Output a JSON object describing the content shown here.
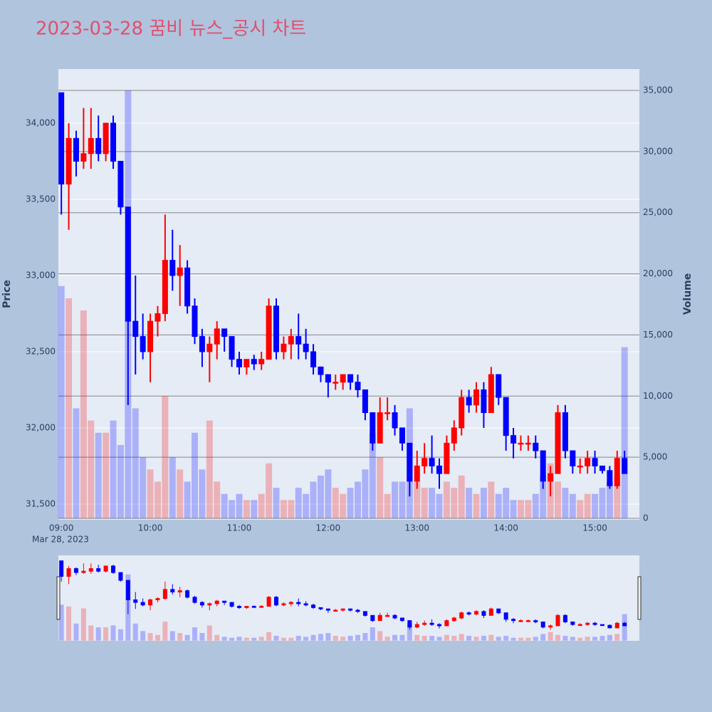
{
  "chart_data": {
    "type": "candlestick",
    "title": "2023-03-28 꿈비 뉴스_공시 차트",
    "y_label": "Price",
    "y2_label": "Volume",
    "x_date_label": "Mar 28, 2023",
    "up_color": "#ff0000",
    "down_color": "#0000ff",
    "x": [
      "2023-03-28 09:00",
      "2023-03-28 09:05",
      "2023-03-28 09:10",
      "2023-03-28 09:15",
      "2023-03-28 09:20",
      "2023-03-28 09:25",
      "2023-03-28 09:30",
      "2023-03-28 09:35",
      "2023-03-28 09:40",
      "2023-03-28 09:45",
      "2023-03-28 09:50",
      "2023-03-28 09:55",
      "2023-03-28 10:00",
      "2023-03-28 10:05",
      "2023-03-28 10:10",
      "2023-03-28 10:15",
      "2023-03-28 10:20",
      "2023-03-28 10:25",
      "2023-03-28 10:30",
      "2023-03-28 10:35",
      "2023-03-28 10:40",
      "2023-03-28 10:45",
      "2023-03-28 10:50",
      "2023-03-28 10:55",
      "2023-03-28 11:00",
      "2023-03-28 11:05",
      "2023-03-28 11:10",
      "2023-03-28 11:15",
      "2023-03-28 11:20",
      "2023-03-28 11:25",
      "2023-03-28 11:30",
      "2023-03-28 11:35",
      "2023-03-28 11:40",
      "2023-03-28 11:45",
      "2023-03-28 11:50",
      "2023-03-28 11:55",
      "2023-03-28 12:00",
      "2023-03-28 12:05",
      "2023-03-28 12:10",
      "2023-03-28 12:15",
      "2023-03-28 12:20",
      "2023-03-28 12:25",
      "2023-03-28 12:30",
      "2023-03-28 12:35",
      "2023-03-28 12:40",
      "2023-03-28 12:45",
      "2023-03-28 12:50",
      "2023-03-28 12:55",
      "2023-03-28 13:00",
      "2023-03-28 13:05",
      "2023-03-28 13:10",
      "2023-03-28 13:15",
      "2023-03-28 13:20",
      "2023-03-28 13:25",
      "2023-03-28 13:30",
      "2023-03-28 13:35",
      "2023-03-28 13:40",
      "2023-03-28 13:45",
      "2023-03-28 13:50",
      "2023-03-28 13:55",
      "2023-03-28 14:00",
      "2023-03-28 14:05",
      "2023-03-28 14:10",
      "2023-03-28 14:15",
      "2023-03-28 14:20",
      "2023-03-28 14:25",
      "2023-03-28 14:30",
      "2023-03-28 14:35",
      "2023-03-28 14:40",
      "2023-03-28 14:45",
      "2023-03-28 14:50",
      "2023-03-28 14:55",
      "2023-03-28 15:00",
      "2023-03-28 15:05",
      "2023-03-28 15:10",
      "2023-03-28 15:15",
      "2023-03-28 15:20"
    ],
    "open": [
      34200,
      33600,
      33900,
      33750,
      33800,
      33900,
      33800,
      34000,
      33750,
      33450,
      32700,
      32600,
      32500,
      32700,
      32750,
      33100,
      33000,
      33050,
      32800,
      32600,
      32500,
      32550,
      32650,
      32600,
      32450,
      32400,
      32450,
      32420,
      32450,
      32800,
      32500,
      32550,
      32600,
      32550,
      32500,
      32400,
      32350,
      32300,
      32300,
      32350,
      32300,
      32250,
      32100,
      31900,
      32100,
      32100,
      32000,
      31900,
      31650,
      31750,
      31800,
      31750,
      31700,
      31900,
      32000,
      32200,
      32150,
      32250,
      32100,
      32350,
      32200,
      31950,
      31900,
      31900,
      31900,
      31850,
      31650,
      31700,
      32100,
      31850,
      31750,
      31750,
      31800,
      31750,
      31720,
      31620,
      31800
    ],
    "high": [
      34200,
      34000,
      33950,
      34100,
      34100,
      34050,
      34000,
      34050,
      33750,
      33450,
      33000,
      32750,
      32750,
      32800,
      33400,
      33300,
      33200,
      33100,
      32850,
      32650,
      32600,
      32700,
      32650,
      32600,
      32500,
      32450,
      32480,
      32500,
      32850,
      32850,
      32600,
      32650,
      32750,
      32650,
      32550,
      32400,
      32350,
      32350,
      32350,
      32350,
      32350,
      32250,
      32100,
      32200,
      32200,
      32150,
      32000,
      31900,
      31850,
      31900,
      31950,
      31800,
      31950,
      32050,
      32250,
      32250,
      32300,
      32300,
      32400,
      32350,
      32200,
      32000,
      31950,
      31950,
      31950,
      31850,
      31750,
      32150,
      32150,
      31850,
      31800,
      31850,
      31850,
      31750,
      31750,
      31850,
      31850
    ],
    "low": [
      33400,
      33300,
      33650,
      33700,
      33700,
      33750,
      33750,
      33700,
      33400,
      32150,
      32350,
      32450,
      32300,
      32600,
      32700,
      32900,
      32800,
      32750,
      32550,
      32400,
      32300,
      32450,
      32500,
      32400,
      32350,
      32350,
      32380,
      32380,
      32450,
      32450,
      32450,
      32450,
      32450,
      32450,
      32350,
      32300,
      32200,
      32250,
      32250,
      32250,
      32200,
      32050,
      31850,
      31900,
      32050,
      31950,
      31850,
      31550,
      31600,
      31700,
      31700,
      31600,
      31700,
      31850,
      31950,
      32100,
      32100,
      32000,
      32100,
      32150,
      31850,
      31800,
      31850,
      31850,
      31800,
      31600,
      31550,
      31700,
      31800,
      31700,
      31700,
      31700,
      31700,
      31700,
      31600,
      31600,
      31700
    ],
    "close": [
      33600,
      33900,
      33750,
      33800,
      33900,
      33800,
      34000,
      33750,
      33450,
      32700,
      32600,
      32500,
      32700,
      32750,
      33100,
      33000,
      33050,
      32800,
      32600,
      32500,
      32550,
      32650,
      32600,
      32450,
      32400,
      32450,
      32420,
      32450,
      32800,
      32500,
      32550,
      32600,
      32550,
      32500,
      32400,
      32350,
      32300,
      32300,
      32350,
      32300,
      32250,
      32100,
      31900,
      32100,
      32100,
      32000,
      31900,
      31650,
      31750,
      31800,
      31750,
      31700,
      31900,
      32000,
      32200,
      32150,
      32250,
      32100,
      32350,
      32200,
      31950,
      31900,
      31900,
      31900,
      31850,
      31650,
      31700,
      32100,
      31850,
      31750,
      31750,
      31800,
      31750,
      31720,
      31620,
      31800,
      31700
    ],
    "volume": [
      19000,
      18000,
      9000,
      17000,
      8000,
      7000,
      7000,
      8000,
      6000,
      35000,
      9000,
      5000,
      4000,
      3000,
      10000,
      5000,
      4000,
      3000,
      7000,
      4000,
      8000,
      3000,
      2000,
      1500,
      2000,
      1500,
      1500,
      2000,
      4500,
      2500,
      1500,
      1500,
      2500,
      2000,
      3000,
      3500,
      4000,
      2500,
      2000,
      2500,
      3000,
      4000,
      7000,
      5000,
      2000,
      3000,
      3000,
      9000,
      3000,
      2500,
      2500,
      2000,
      3000,
      2500,
      3500,
      2500,
      2000,
      2500,
      3000,
      2000,
      2500,
      1500,
      1500,
      1500,
      2000,
      3500,
      4500,
      3000,
      2500,
      2000,
      1500,
      2000,
      2000,
      2500,
      3000,
      3500,
      14000
    ],
    "xlim": [
      "2023-03-28 08:58",
      "2023-03-28 15:30"
    ],
    "xticks": [
      {
        "value": "2023-03-28 09:00",
        "label": "09:00"
      },
      {
        "value": "2023-03-28 10:00",
        "label": "10:00"
      },
      {
        "value": "2023-03-28 11:00",
        "label": "11:00"
      },
      {
        "value": "2023-03-28 12:00",
        "label": "12:00"
      },
      {
        "value": "2023-03-28 13:00",
        "label": "13:00"
      },
      {
        "value": "2023-03-28 14:00",
        "label": "14:00"
      },
      {
        "value": "2023-03-28 15:00",
        "label": "15:00"
      }
    ],
    "ylim": [
      31397,
      34355
    ],
    "yticks": [
      {
        "value": 31500,
        "label": "31,500"
      },
      {
        "value": 32000,
        "label": "32,000"
      },
      {
        "value": 32500,
        "label": "32,500"
      },
      {
        "value": 33000,
        "label": "33,000"
      },
      {
        "value": 33500,
        "label": "33,500"
      },
      {
        "value": 34000,
        "label": "34,000"
      }
    ],
    "y2lim": [
      -116,
      36747
    ],
    "y2ticks": [
      0,
      {
        "value": 5000,
        "label": "5,000"
      },
      {
        "value": 10000,
        "label": "10,000"
      },
      {
        "value": 15000,
        "label": "15,000"
      },
      {
        "value": 20000,
        "label": "20,000"
      },
      {
        "value": 25000,
        "label": "25,000"
      },
      {
        "value": 30000,
        "label": "30,000"
      },
      {
        "value": 35000,
        "label": "35,000"
      }
    ],
    "grid": true,
    "range_slider": true
  }
}
